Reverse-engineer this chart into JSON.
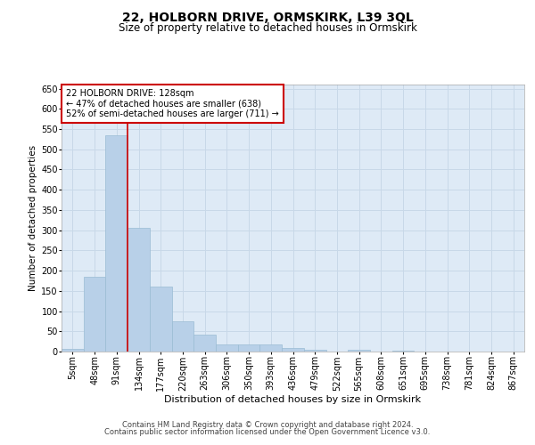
{
  "title": "22, HOLBORN DRIVE, ORMSKIRK, L39 3QL",
  "subtitle": "Size of property relative to detached houses in Ormskirk",
  "xlabel": "Distribution of detached houses by size in Ormskirk",
  "ylabel": "Number of detached properties",
  "footer_line1": "Contains HM Land Registry data © Crown copyright and database right 2024.",
  "footer_line2": "Contains public sector information licensed under the Open Government Licence v3.0.",
  "bar_labels": [
    "5sqm",
    "48sqm",
    "91sqm",
    "134sqm",
    "177sqm",
    "220sqm",
    "263sqm",
    "306sqm",
    "350sqm",
    "393sqm",
    "436sqm",
    "479sqm",
    "522sqm",
    "565sqm",
    "608sqm",
    "651sqm",
    "695sqm",
    "738sqm",
    "781sqm",
    "824sqm",
    "867sqm"
  ],
  "bar_values": [
    7,
    184,
    535,
    305,
    160,
    75,
    42,
    17,
    18,
    18,
    9,
    5,
    0,
    5,
    0,
    3,
    0,
    1,
    0,
    0,
    0
  ],
  "bar_color": "#b8d0e8",
  "bar_edge_color": "#9abcd4",
  "grid_color": "#c8d8e8",
  "background_color": "#deeaf6",
  "annotation_text": "22 HOLBORN DRIVE: 128sqm\n← 47% of detached houses are smaller (638)\n52% of semi-detached houses are larger (711) →",
  "annotation_box_color": "#ffffff",
  "annotation_box_edge": "#cc0000",
  "vline_x": 2.5,
  "vline_color": "#cc0000",
  "ylim": [
    0,
    660
  ],
  "yticks": [
    0,
    50,
    100,
    150,
    200,
    250,
    300,
    350,
    400,
    450,
    500,
    550,
    600,
    650
  ],
  "title_fontsize": 10,
  "subtitle_fontsize": 8.5,
  "ylabel_fontsize": 7.5,
  "xlabel_fontsize": 8,
  "tick_fontsize": 7,
  "annotation_fontsize": 7,
  "footer_fontsize": 6
}
